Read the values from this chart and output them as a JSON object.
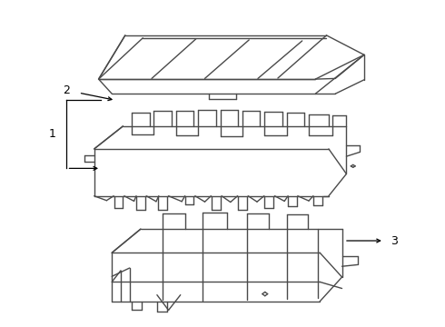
{
  "background_color": "#ffffff",
  "line_color": "#4a4a4a",
  "line_width": 1.0
}
